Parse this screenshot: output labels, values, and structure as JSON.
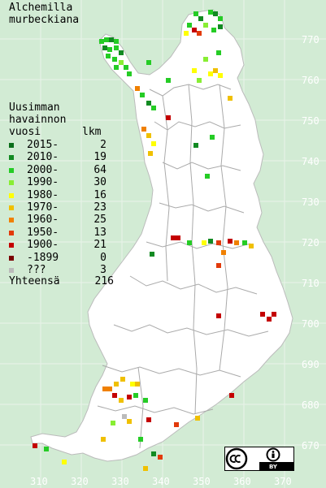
{
  "title": {
    "line1": "Alchemilla",
    "line2": "murbeckiana"
  },
  "legend": {
    "heading": [
      "Uusimman",
      "havainnon",
      "vuosi"
    ],
    "count_header": "lkm",
    "rows": [
      {
        "label": "2015-",
        "count": "2",
        "color": "#0a6e1a"
      },
      {
        "label": "2010-",
        "count": "19",
        "color": "#128a22"
      },
      {
        "label": "2000-",
        "count": "64",
        "color": "#25cc25"
      },
      {
        "label": "1990-",
        "count": "30",
        "color": "#88ee33"
      },
      {
        "label": "1980-",
        "count": "16",
        "color": "#ffff00"
      },
      {
        "label": "1970-",
        "count": "23",
        "color": "#f0c000"
      },
      {
        "label": "1960-",
        "count": "25",
        "color": "#f08000"
      },
      {
        "label": "1950-",
        "count": "13",
        "color": "#e23a0a"
      },
      {
        "label": "1900-",
        "count": "21",
        "color": "#c40000"
      },
      {
        "label": "-1899",
        "count": "0",
        "color": "#7a0000"
      },
      {
        "label": "???",
        "count": "3",
        "color": "#bbbbbb"
      }
    ],
    "total_label": "Yhteensä",
    "total_count": "216"
  },
  "axis": {
    "y_labels": [
      "770",
      "760",
      "750",
      "740",
      "730",
      "720",
      "710",
      "700",
      "690",
      "680",
      "670"
    ],
    "x_labels": [
      "310",
      "320",
      "330",
      "340",
      "350",
      "360",
      "370"
    ]
  },
  "license": {
    "icons": [
      "cc-icon",
      "by-icon"
    ],
    "text": "BY"
  },
  "colors": {
    "background": "#d2ebd4",
    "land": "#ffffff",
    "border": "#aaaaaa"
  }
}
